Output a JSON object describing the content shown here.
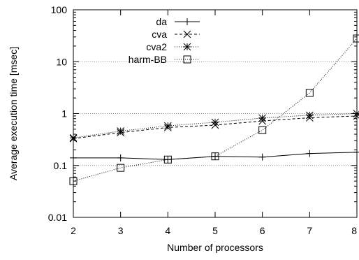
{
  "chart_data": {
    "type": "line",
    "xlabel": "Number of processors",
    "ylabel": "Average execution time [msec]",
    "yscale": "log",
    "xlim": [
      2,
      8
    ],
    "ylim": [
      0.01,
      100
    ],
    "x_ticks": [
      2,
      3,
      4,
      5,
      6,
      7,
      8
    ],
    "x_tick_labels": [
      "2",
      "3",
      "4",
      "5",
      "6",
      "7",
      "8"
    ],
    "y_ticks": [
      0.01,
      0.1,
      1,
      10,
      100
    ],
    "y_tick_labels": [
      "0.01",
      "0.1",
      "1",
      "10",
      "100"
    ],
    "grid": "horizontal dotted lines at y = 0.1, 1, 10",
    "legend_position": "top-left",
    "x": [
      2,
      3,
      4,
      5,
      6,
      7,
      8
    ],
    "series": [
      {
        "name": "da",
        "marker": "plus",
        "line": "solid",
        "values": [
          0.14,
          0.14,
          0.13,
          0.15,
          0.145,
          0.17,
          0.18
        ]
      },
      {
        "name": "cva",
        "marker": "cross",
        "line": "dashed",
        "values": [
          0.33,
          0.43,
          0.54,
          0.6,
          0.72,
          0.83,
          0.9
        ]
      },
      {
        "name": "cva2",
        "marker": "star",
        "line": "dotted",
        "values": [
          0.34,
          0.46,
          0.58,
          0.68,
          0.82,
          0.93,
          1.0
        ]
      },
      {
        "name": "harm-BB",
        "marker": "box",
        "line": "dotted",
        "values": [
          0.05,
          0.09,
          0.13,
          0.15,
          0.48,
          2.5,
          28
        ]
      }
    ]
  }
}
